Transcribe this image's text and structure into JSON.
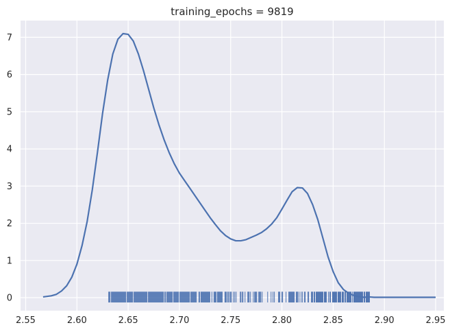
{
  "chart_data": {
    "type": "line",
    "title": "training_epochs = 9819",
    "xlabel": "",
    "ylabel": "",
    "xlim": [
      2.545,
      2.958
    ],
    "ylim": [
      -0.35,
      7.45
    ],
    "xticks": [
      2.55,
      2.6,
      2.65,
      2.7,
      2.75,
      2.8,
      2.85,
      2.9,
      2.95
    ],
    "xtick_labels": [
      "2.55",
      "2.60",
      "2.65",
      "2.70",
      "2.75",
      "2.80",
      "2.85",
      "2.90",
      "2.95"
    ],
    "yticks": [
      0,
      1,
      2,
      3,
      4,
      5,
      6,
      7
    ],
    "ytick_labels": [
      "0",
      "1",
      "2",
      "3",
      "4",
      "5",
      "6",
      "7"
    ],
    "grid": true,
    "background_color": "#eaeaf2",
    "grid_color": "#ffffff",
    "line_color": "#4c72b0",
    "series": [
      {
        "kind": "kde",
        "x": [
          2.567,
          2.575,
          2.58,
          2.585,
          2.59,
          2.595,
          2.6,
          2.605,
          2.61,
          2.615,
          2.62,
          2.625,
          2.63,
          2.635,
          2.64,
          2.645,
          2.65,
          2.655,
          2.66,
          2.665,
          2.67,
          2.675,
          2.68,
          2.685,
          2.69,
          2.695,
          2.7,
          2.705,
          2.71,
          2.715,
          2.72,
          2.725,
          2.73,
          2.735,
          2.74,
          2.745,
          2.75,
          2.755,
          2.76,
          2.765,
          2.77,
          2.775,
          2.78,
          2.785,
          2.79,
          2.795,
          2.8,
          2.805,
          2.81,
          2.815,
          2.82,
          2.825,
          2.83,
          2.835,
          2.84,
          2.845,
          2.85,
          2.855,
          2.86,
          2.865,
          2.87,
          2.875,
          2.88,
          2.885,
          2.89,
          2.895,
          2.9,
          2.905,
          2.91,
          2.915,
          2.92,
          2.925,
          2.93,
          2.935,
          2.94,
          2.945,
          2.95
        ],
        "y": [
          0.02,
          0.05,
          0.09,
          0.18,
          0.32,
          0.55,
          0.9,
          1.4,
          2.05,
          2.9,
          3.9,
          4.95,
          5.85,
          6.55,
          6.95,
          7.1,
          7.08,
          6.9,
          6.55,
          6.1,
          5.6,
          5.1,
          4.65,
          4.25,
          3.9,
          3.6,
          3.35,
          3.15,
          2.95,
          2.75,
          2.55,
          2.35,
          2.15,
          1.97,
          1.8,
          1.67,
          1.58,
          1.53,
          1.53,
          1.56,
          1.62,
          1.68,
          1.75,
          1.85,
          1.98,
          2.15,
          2.38,
          2.62,
          2.85,
          2.96,
          2.95,
          2.8,
          2.5,
          2.1,
          1.6,
          1.1,
          0.7,
          0.4,
          0.22,
          0.12,
          0.06,
          0.03,
          0.01,
          0.02,
          0.01,
          0.01,
          0.01,
          0.01,
          0.01,
          0.01,
          0.01,
          0.01,
          0.01,
          0.01,
          0.01,
          0.01,
          0.01
        ]
      }
    ],
    "rug": {
      "height": 0.05,
      "segments": [
        {
          "from": 2.631,
          "to": 2.717,
          "density": 0.9
        },
        {
          "from": 2.719,
          "to": 2.75,
          "density": 0.7
        },
        {
          "from": 2.75,
          "to": 2.79,
          "density": 0.45
        },
        {
          "from": 2.79,
          "to": 2.83,
          "density": 0.5
        },
        {
          "from": 2.83,
          "to": 2.886,
          "density": 0.8
        }
      ]
    }
  }
}
